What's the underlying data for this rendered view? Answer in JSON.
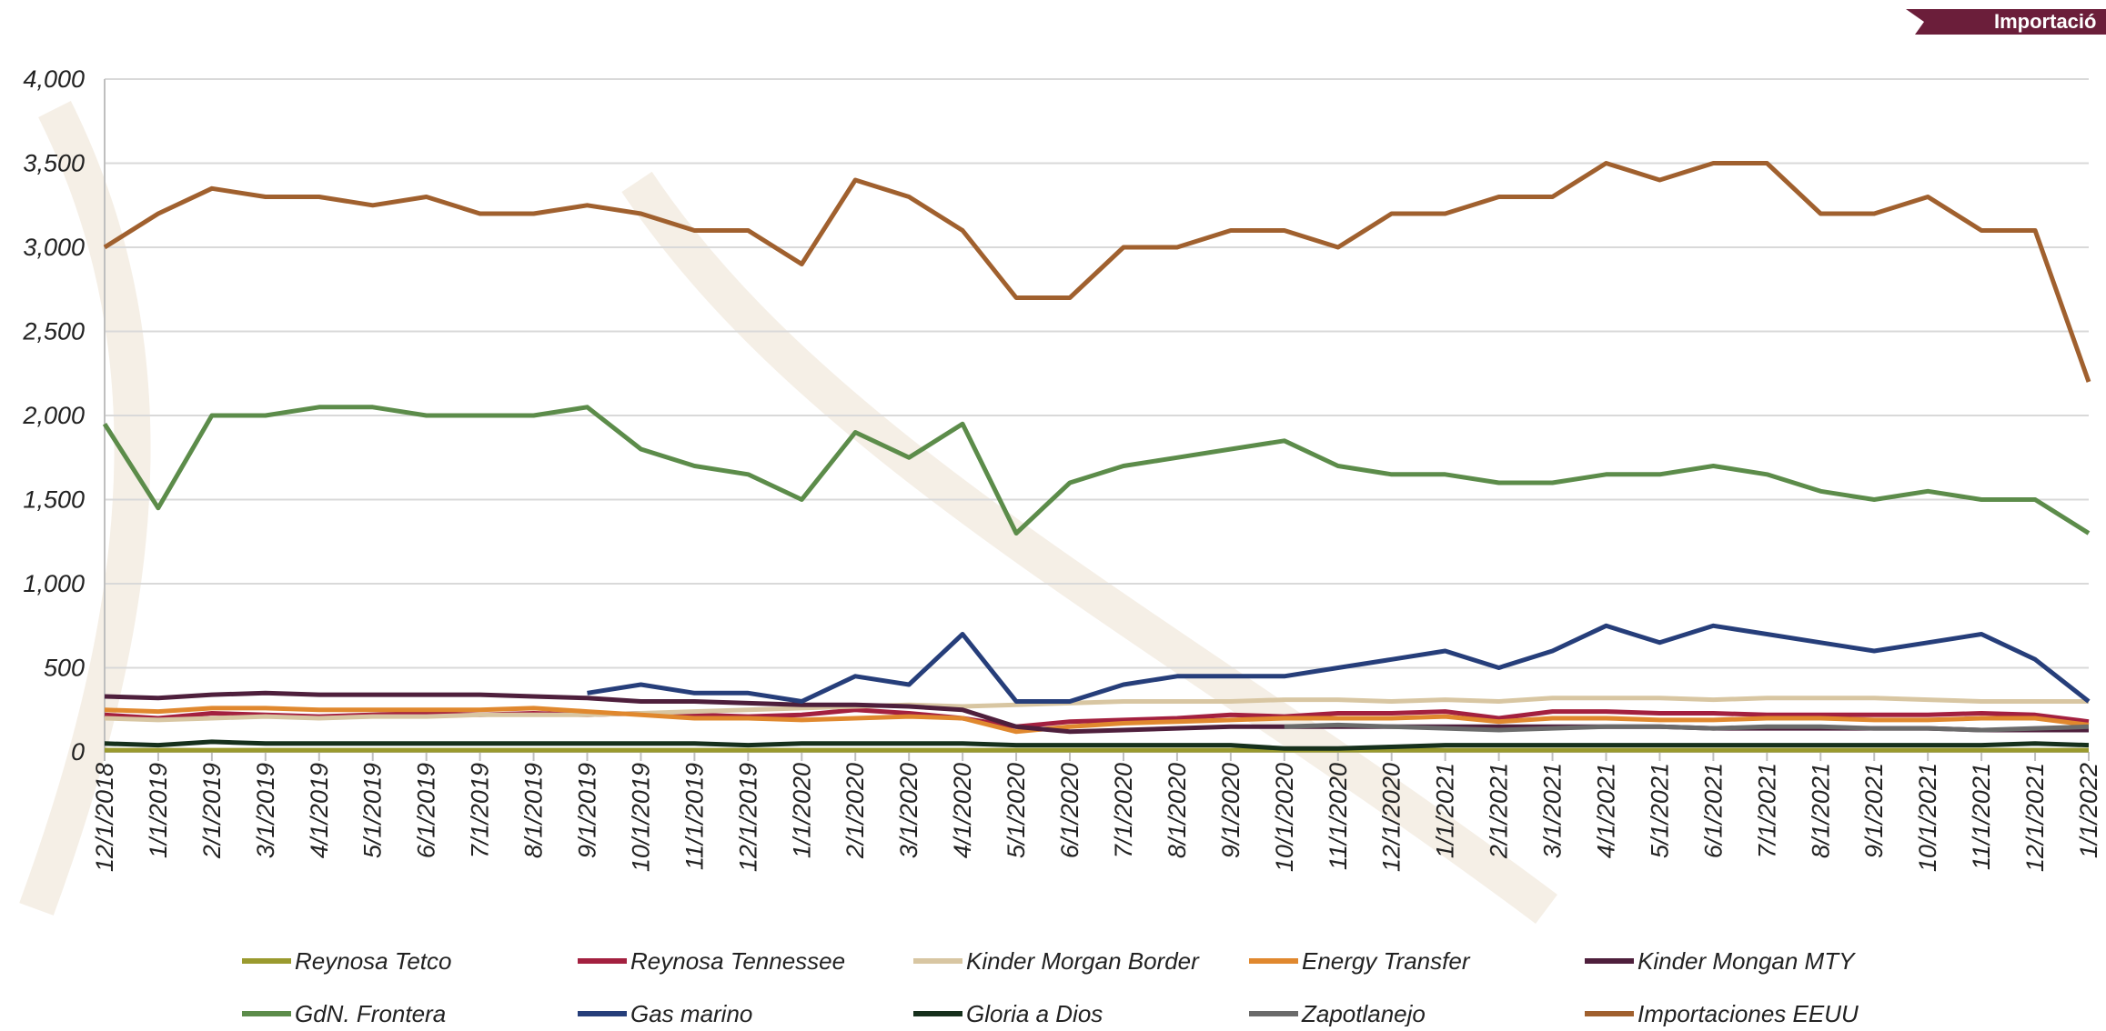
{
  "banner": "Importació",
  "chart_data": {
    "type": "line",
    "categories": [
      "12/1/2018",
      "1/1/2019",
      "2/1/2019",
      "3/1/2019",
      "4/1/2019",
      "5/1/2019",
      "6/1/2019",
      "7/1/2019",
      "8/1/2019",
      "9/1/2019",
      "10/1/2019",
      "11/1/2019",
      "12/1/2019",
      "1/1/2020",
      "2/1/2020",
      "3/1/2020",
      "4/1/2020",
      "5/1/2020",
      "6/1/2020",
      "7/1/2020",
      "8/1/2020",
      "9/1/2020",
      "10/1/2020",
      "11/1/2020",
      "12/1/2020",
      "1/1/2021",
      "2/1/2021",
      "3/1/2021",
      "4/1/2021",
      "5/1/2021",
      "6/1/2021",
      "7/1/2021",
      "8/1/2021",
      "9/1/2021",
      "10/1/2021",
      "11/1/2021",
      "12/1/2021",
      "1/1/2022"
    ],
    "ylim": [
      0,
      4000
    ],
    "yticks": [
      0,
      500,
      {
        "value": 1000,
        "label": "1,000"
      },
      {
        "value": 1500,
        "label": "1,500"
      },
      {
        "value": 2000,
        "label": "2,000"
      },
      {
        "value": 2500,
        "label": "2,500"
      },
      {
        "value": 3000,
        "label": "3,000"
      },
      {
        "value": 3500,
        "label": "3,500"
      },
      {
        "value": 4000,
        "label": "4,000"
      }
    ],
    "grid": true,
    "legend": "bottom",
    "series": [
      {
        "name": "Reynosa Tetco",
        "color": "#9a9a2e",
        "values": [
          10,
          10,
          10,
          10,
          10,
          10,
          10,
          10,
          10,
          10,
          10,
          10,
          10,
          10,
          10,
          10,
          10,
          10,
          10,
          10,
          10,
          10,
          10,
          10,
          10,
          10,
          10,
          10,
          10,
          10,
          10,
          10,
          10,
          10,
          10,
          10,
          10,
          10
        ]
      },
      {
        "name": "Reynosa Tennessee",
        "color": "#a3203f",
        "values": [
          220,
          200,
          230,
          220,
          210,
          220,
          230,
          220,
          230,
          220,
          230,
          220,
          210,
          220,
          250,
          230,
          200,
          150,
          180,
          190,
          200,
          220,
          210,
          230,
          230,
          240,
          200,
          240,
          240,
          230,
          230,
          220,
          220,
          220,
          220,
          230,
          220,
          180
        ]
      },
      {
        "name": "Kinder Morgan Border",
        "color": "#d8c6a2",
        "values": [
          200,
          190,
          200,
          210,
          200,
          210,
          210,
          220,
          220,
          220,
          230,
          240,
          250,
          260,
          270,
          280,
          270,
          280,
          290,
          300,
          300,
          300,
          310,
          310,
          300,
          310,
          300,
          320,
          320,
          320,
          310,
          320,
          320,
          320,
          310,
          300,
          300,
          300
        ]
      },
      {
        "name": "Energy Transfer",
        "color": "#e0882e",
        "values": [
          250,
          240,
          260,
          260,
          250,
          250,
          250,
          250,
          260,
          240,
          220,
          200,
          200,
          190,
          200,
          210,
          200,
          120,
          150,
          170,
          180,
          190,
          200,
          200,
          200,
          210,
          180,
          200,
          200,
          190,
          190,
          200,
          200,
          190,
          190,
          200,
          200,
          160
        ]
      },
      {
        "name": "Kinder Mongan MTY",
        "color": "#4e1f3c",
        "values": [
          330,
          320,
          340,
          350,
          340,
          340,
          340,
          340,
          330,
          320,
          300,
          300,
          290,
          280,
          280,
          270,
          250,
          150,
          120,
          130,
          140,
          150,
          150,
          150,
          150,
          150,
          150,
          150,
          150,
          150,
          140,
          140,
          140,
          140,
          140,
          130,
          130,
          130
        ]
      },
      {
        "name": "GdN. Frontera",
        "color": "#5c8c4a",
        "values": [
          1950,
          1450,
          2000,
          2000,
          2050,
          2050,
          2000,
          2000,
          2000,
          2050,
          1800,
          1700,
          1650,
          1500,
          1900,
          1750,
          1950,
          1300,
          1600,
          1700,
          1750,
          1800,
          1850,
          1700,
          1650,
          1650,
          1600,
          1600,
          1650,
          1650,
          1700,
          1650,
          1550,
          1500,
          1550,
          1500,
          1500,
          1300
        ]
      },
      {
        "name": "Gas marino",
        "color": "#263e7a",
        "values": [
          null,
          null,
          null,
          null,
          null,
          null,
          null,
          null,
          null,
          350,
          400,
          350,
          350,
          300,
          450,
          400,
          700,
          300,
          300,
          400,
          450,
          450,
          450,
          500,
          550,
          600,
          500,
          600,
          750,
          650,
          750,
          700,
          650,
          600,
          650,
          700,
          550,
          300
        ]
      },
      {
        "name": "Gloria a Dios",
        "color": "#16301c",
        "values": [
          50,
          40,
          60,
          50,
          50,
          50,
          50,
          50,
          50,
          50,
          50,
          50,
          40,
          50,
          50,
          50,
          50,
          40,
          40,
          40,
          40,
          40,
          20,
          20,
          30,
          40,
          40,
          40,
          40,
          40,
          40,
          40,
          40,
          40,
          40,
          40,
          50,
          40
        ]
      },
      {
        "name": "Zapotlanejo",
        "color": "#6b6b6b",
        "values": [
          null,
          null,
          null,
          null,
          null,
          null,
          null,
          null,
          null,
          null,
          null,
          null,
          null,
          null,
          null,
          null,
          null,
          null,
          null,
          null,
          null,
          null,
          150,
          160,
          150,
          140,
          130,
          140,
          150,
          150,
          140,
          150,
          150,
          140,
          140,
          130,
          140,
          150
        ]
      },
      {
        "name": "Importaciones EEUU",
        "color": "#a0602e",
        "values": [
          3000,
          3200,
          3350,
          3300,
          3300,
          3250,
          3300,
          3200,
          3200,
          3250,
          3200,
          3100,
          3100,
          2900,
          3400,
          3300,
          3100,
          2700,
          2700,
          3000,
          3000,
          3100,
          3100,
          3000,
          3200,
          3200,
          3300,
          3300,
          3500,
          3400,
          3500,
          3500,
          3200,
          3200,
          3300,
          3100,
          3100,
          2200
        ]
      }
    ]
  }
}
